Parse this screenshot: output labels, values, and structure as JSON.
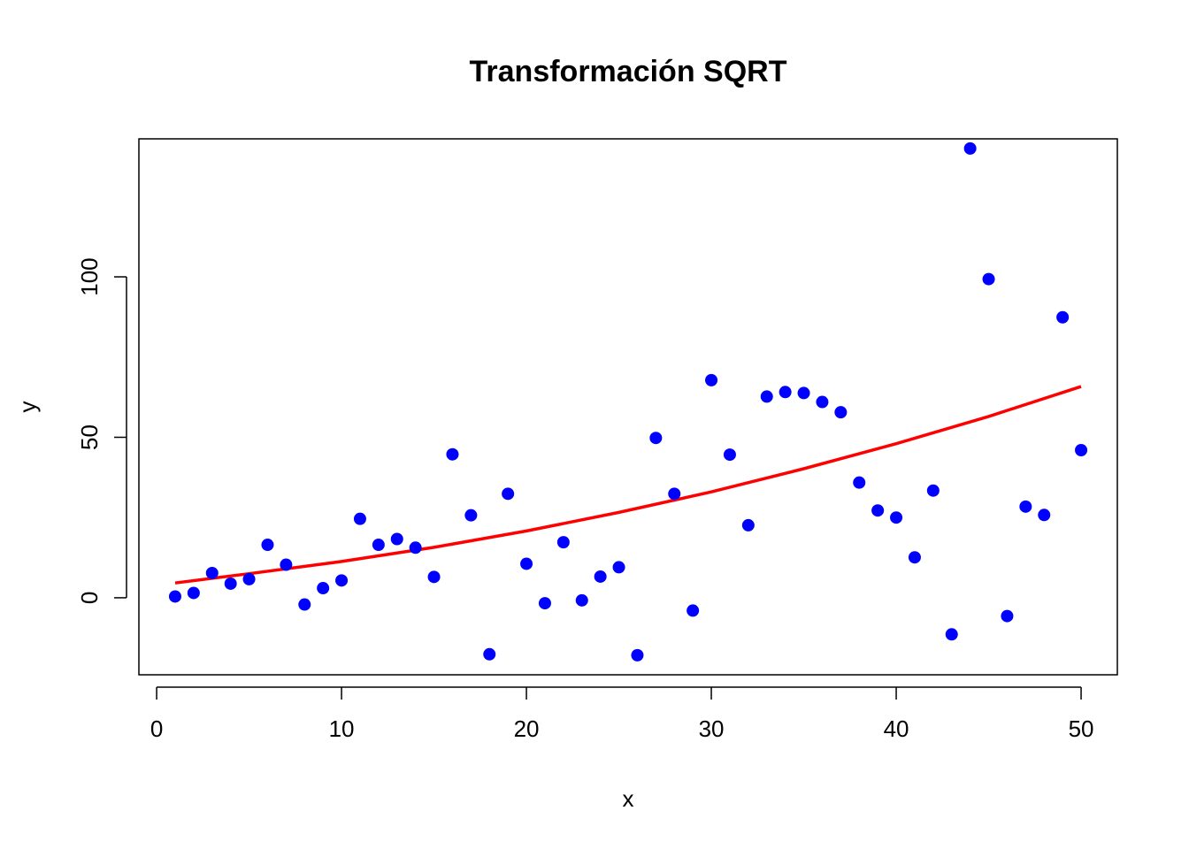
{
  "chart_data": {
    "type": "scatter",
    "title": "Transformación SQRT",
    "xlabel": "x",
    "ylabel": "y",
    "xlim": [
      -0.96,
      51.96
    ],
    "ylim": [
      -24,
      143
    ],
    "x_ticks": [
      0,
      10,
      20,
      30,
      40,
      50
    ],
    "y_ticks": [
      0,
      50,
      100
    ],
    "grid": false,
    "point_color": "#0000ff",
    "line_color": "#ff0000",
    "points": {
      "x": [
        1,
        2,
        3,
        4,
        5,
        6,
        7,
        8,
        9,
        10,
        11,
        12,
        13,
        14,
        15,
        16,
        17,
        18,
        19,
        20,
        21,
        22,
        23,
        24,
        25,
        26,
        27,
        28,
        29,
        30,
        31,
        32,
        33,
        34,
        35,
        36,
        37,
        38,
        39,
        40,
        41,
        42,
        43,
        44,
        45,
        46,
        47,
        48,
        49,
        50
      ],
      "y": [
        0.4,
        1.5,
        7.7,
        4.4,
        5.8,
        16.5,
        10.3,
        -2.1,
        3.0,
        5.4,
        24.6,
        16.5,
        18.3,
        15.6,
        6.5,
        44.7,
        25.7,
        -17.6,
        32.4,
        10.6,
        -1.7,
        17.3,
        -0.8,
        6.6,
        9.5,
        -17.9,
        49.8,
        32.4,
        -4.0,
        67.8,
        44.6,
        22.6,
        62.7,
        64.1,
        63.8,
        61.0,
        57.8,
        35.9,
        27.2,
        25.0,
        12.6,
        33.4,
        -11.4,
        140.0,
        99.3,
        -5.7,
        28.4,
        25.8,
        87.4,
        46.0
      ]
    },
    "fit_line": {
      "x": [
        1,
        5,
        10,
        15,
        20,
        25,
        30,
        35,
        40,
        45,
        50
      ],
      "y": [
        4.6,
        7.5,
        11.3,
        15.7,
        20.8,
        26.6,
        33.0,
        40.2,
        48.0,
        56.5,
        65.8
      ]
    }
  }
}
